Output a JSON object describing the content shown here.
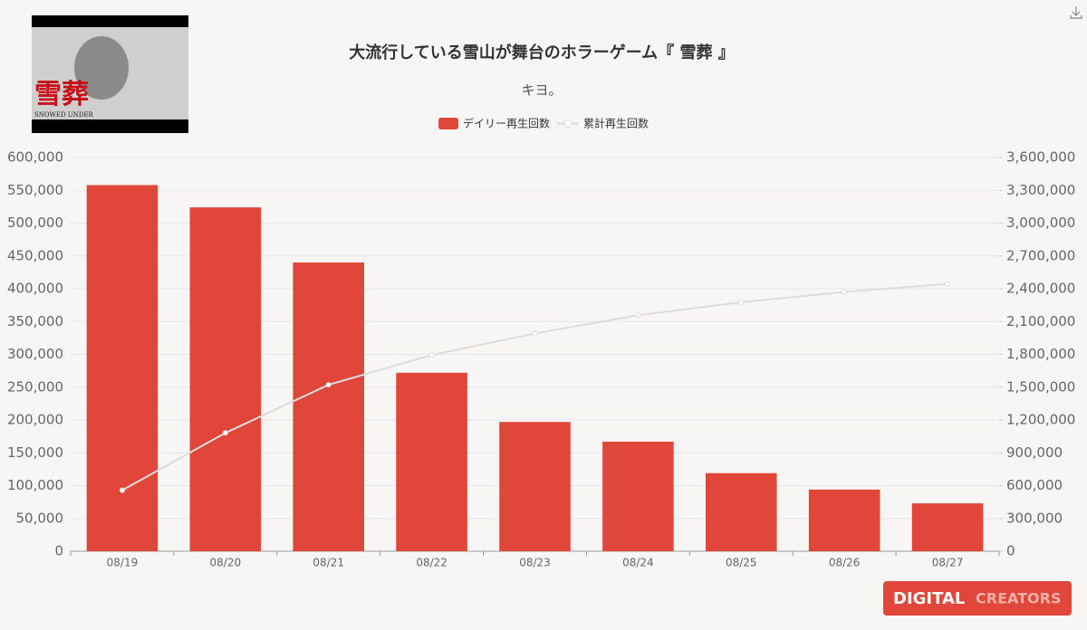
{
  "thumbnail": {
    "title": "雪葬",
    "subtitle": "SNOWED UNDER"
  },
  "logo": {
    "text1": "DIGITAL",
    "text2": "CREATORS"
  },
  "chart_data": {
    "type": "bar",
    "title": "大流行している雪山が舞台のホラーゲーム『 雪葬 』",
    "subtitle": "キヨ。",
    "categories": [
      "08/19",
      "08/20",
      "08/21",
      "08/22",
      "08/23",
      "08/24",
      "08/25",
      "08/26",
      "08/27"
    ],
    "series": [
      {
        "name": "デイリー再生回数",
        "type": "bar",
        "color": "#e0463a",
        "values": [
          558000,
          524000,
          440000,
          272000,
          197000,
          167000,
          119000,
          94000,
          73000
        ]
      },
      {
        "name": "累計再生回数",
        "type": "line",
        "axis": "y2",
        "color": "#dcdcdc",
        "values": [
          558000,
          1082000,
          1522000,
          1794000,
          1991000,
          2158000,
          2277000,
          2371000,
          2444000
        ]
      }
    ],
    "ylim": [
      0,
      600000
    ],
    "yticks": [
      0,
      {
        "value": 50000,
        "label": "50,000"
      },
      {
        "value": 100000,
        "label": "100,000"
      },
      {
        "value": 150000,
        "label": "150,000"
      },
      {
        "value": 200000,
        "label": "200,000"
      },
      {
        "value": 250000,
        "label": "250,000"
      },
      {
        "value": 300000,
        "label": "300,000"
      },
      {
        "value": 350000,
        "label": "350,000"
      },
      {
        "value": 400000,
        "label": "400,000"
      },
      {
        "value": 450000,
        "label": "450,000"
      },
      {
        "value": 500000,
        "label": "500,000"
      },
      {
        "value": 550000,
        "label": "550,000"
      },
      {
        "value": 600000,
        "label": "600,000"
      }
    ],
    "y2lim": [
      0,
      3600000
    ],
    "y2ticks": [
      0,
      {
        "value": 300000,
        "label": "300,000"
      },
      {
        "value": 600000,
        "label": "600,000"
      },
      {
        "value": 900000,
        "label": "900,000"
      },
      {
        "value": 1200000,
        "label": "1,200,000"
      },
      {
        "value": 1500000,
        "label": "1,500,000"
      },
      {
        "value": 1800000,
        "label": "1,800,000"
      },
      {
        "value": 2100000,
        "label": "2,100,000"
      },
      {
        "value": 2400000,
        "label": "2,400,000"
      },
      {
        "value": 2700000,
        "label": "2,700,000"
      },
      {
        "value": 3000000,
        "label": "3,000,000"
      },
      {
        "value": 3300000,
        "label": "3,300,000"
      },
      {
        "value": 3600000,
        "label": "3,600,000"
      }
    ],
    "grid": true,
    "legend": "top"
  }
}
